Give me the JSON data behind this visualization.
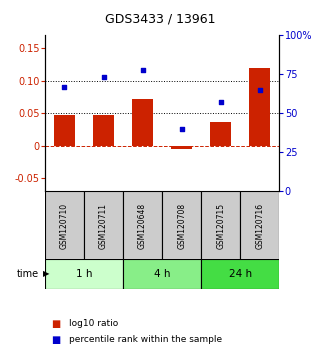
{
  "title": "GDS3433 / 13961",
  "samples": [
    "GSM120710",
    "GSM120711",
    "GSM120648",
    "GSM120708",
    "GSM120715",
    "GSM120716"
  ],
  "log10_ratio": [
    0.047,
    0.047,
    0.072,
    -0.005,
    0.037,
    0.12
  ],
  "percentile_rank": [
    67,
    73,
    78,
    40,
    57,
    65
  ],
  "bar_color": "#cc2200",
  "dot_color": "#0000cc",
  "time_groups": [
    {
      "label": "1 h",
      "start": 0,
      "end": 2,
      "color": "#ccffcc"
    },
    {
      "label": "4 h",
      "start": 2,
      "end": 4,
      "color": "#88ee88"
    },
    {
      "label": "24 h",
      "start": 4,
      "end": 6,
      "color": "#44dd44"
    }
  ],
  "ylim_left": [
    -0.07,
    0.17
  ],
  "ylim_right": [
    0,
    100
  ],
  "yticks_left": [
    -0.05,
    0,
    0.05,
    0.1,
    0.15
  ],
  "ytick_labels_left": [
    "-0.05",
    "0",
    "0.05",
    "0.10",
    "0.15"
  ],
  "yticks_right": [
    0,
    25,
    50,
    75,
    100
  ],
  "ytick_labels_right": [
    "0",
    "25",
    "50",
    "75",
    "100%"
  ],
  "hlines_dotted": [
    0.05,
    0.1
  ],
  "hline_dashed": 0,
  "sample_box_color": "#cccccc",
  "bg_color": "#ffffff",
  "title_fontsize": 9,
  "tick_fontsize": 7,
  "label_fontsize": 7
}
